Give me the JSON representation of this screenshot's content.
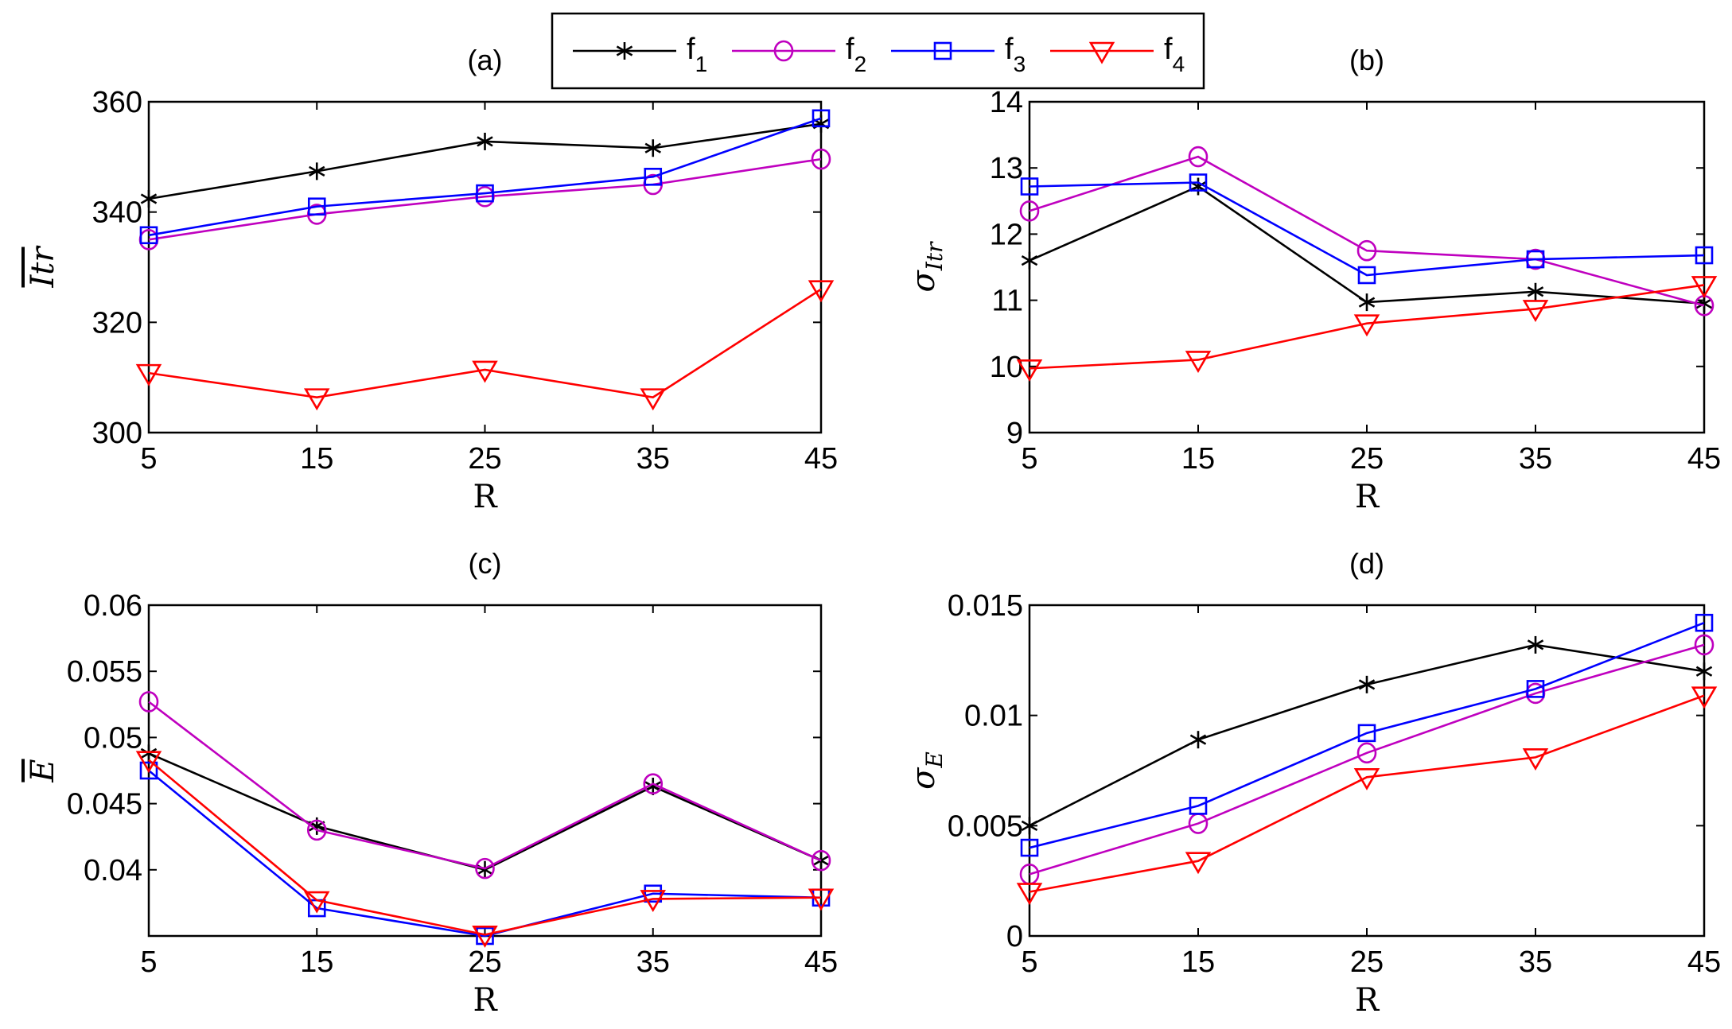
{
  "legend": {
    "entries": [
      {
        "label": "f",
        "sub": "1",
        "color": "#000000",
        "marker": "star"
      },
      {
        "label": "f",
        "sub": "2",
        "color": "#bf00bf",
        "marker": "circle"
      },
      {
        "label": "f",
        "sub": "3",
        "color": "#0000ff",
        "marker": "square"
      },
      {
        "label": "f",
        "sub": "4",
        "color": "#ff0000",
        "marker": "triangle-down"
      }
    ]
  },
  "chart_data": [
    {
      "type": "line",
      "title": "(a)",
      "xlabel": "R",
      "ylabel": "Itr",
      "ylabel_style": "overline",
      "x": [
        5,
        15,
        25,
        35,
        45
      ],
      "xticks": [
        "5",
        "15",
        "25",
        "35",
        "45"
      ],
      "ylim": [
        300,
        360
      ],
      "yticks": [
        300,
        320,
        340,
        360
      ],
      "ytick_labels": [
        "300",
        "320",
        "340",
        "360"
      ],
      "series": [
        {
          "name": "f1",
          "values": [
            342.4,
            347.4,
            352.8,
            351.6,
            356.0
          ]
        },
        {
          "name": "f2",
          "values": [
            335.0,
            339.6,
            342.8,
            345.0,
            349.6
          ]
        },
        {
          "name": "f3",
          "values": [
            335.8,
            341.0,
            343.4,
            346.4,
            357.0
          ]
        },
        {
          "name": "f4",
          "values": [
            310.8,
            306.4,
            311.4,
            306.4,
            326.0
          ]
        }
      ]
    },
    {
      "type": "line",
      "title": "(b)",
      "xlabel": "R",
      "ylabel": "σ",
      "ylabel_sub": "Itr",
      "x": [
        5,
        15,
        25,
        35,
        45
      ],
      "xticks": [
        "5",
        "15",
        "25",
        "35",
        "45"
      ],
      "ylim": [
        9,
        14
      ],
      "yticks": [
        9,
        10,
        11,
        12,
        13,
        14
      ],
      "ytick_labels": [
        "9",
        "10",
        "11",
        "12",
        "13",
        "14"
      ],
      "series": [
        {
          "name": "f1",
          "values": [
            11.6,
            12.72,
            10.97,
            11.13,
            10.95
          ]
        },
        {
          "name": "f2",
          "values": [
            12.35,
            13.17,
            11.75,
            11.62,
            10.92
          ]
        },
        {
          "name": "f3",
          "values": [
            12.72,
            12.78,
            11.38,
            11.62,
            11.68
          ]
        },
        {
          "name": "f4",
          "values": [
            9.97,
            10.1,
            10.65,
            10.87,
            11.23
          ]
        }
      ]
    },
    {
      "type": "line",
      "title": "(c)",
      "xlabel": "R",
      "ylabel": "E",
      "ylabel_style": "overline",
      "x": [
        5,
        15,
        25,
        35,
        45
      ],
      "xticks": [
        "5",
        "15",
        "25",
        "35",
        "45"
      ],
      "ylim": [
        0.035,
        0.06
      ],
      "yticks": [
        0.04,
        0.045,
        0.05,
        0.055,
        0.06
      ],
      "ytick_labels": [
        "0.04",
        "0.045",
        "0.05",
        "0.055",
        "0.06"
      ],
      "series": [
        {
          "name": "f1",
          "values": [
            0.0488,
            0.0433,
            0.04,
            0.0463,
            0.0407
          ]
        },
        {
          "name": "f2",
          "values": [
            0.0527,
            0.043,
            0.0401,
            0.0465,
            0.0407
          ]
        },
        {
          "name": "f3",
          "values": [
            0.0475,
            0.0371,
            0.035,
            0.0382,
            0.0379
          ]
        },
        {
          "name": "f4",
          "values": [
            0.0483,
            0.0377,
            0.0351,
            0.0378,
            0.0379
          ]
        }
      ]
    },
    {
      "type": "line",
      "title": "(d)",
      "xlabel": "R",
      "ylabel": "σ",
      "ylabel_sub": "E",
      "x": [
        5,
        15,
        25,
        35,
        45
      ],
      "xticks": [
        "5",
        "15",
        "25",
        "35",
        "45"
      ],
      "ylim": [
        0,
        0.015
      ],
      "yticks": [
        0,
        0.005,
        0.01,
        0.015
      ],
      "ytick_labels": [
        "0",
        "0.005",
        "0.01",
        "0.015"
      ],
      "series": [
        {
          "name": "f1",
          "values": [
            0.005,
            0.0089,
            0.0114,
            0.0132,
            0.012
          ]
        },
        {
          "name": "f2",
          "values": [
            0.0028,
            0.0051,
            0.0083,
            0.011,
            0.0132
          ]
        },
        {
          "name": "f3",
          "values": [
            0.004,
            0.0059,
            0.0092,
            0.0112,
            0.0142
          ]
        },
        {
          "name": "f4",
          "values": [
            0.002,
            0.0034,
            0.0072,
            0.0081,
            0.0109
          ]
        }
      ]
    }
  ]
}
